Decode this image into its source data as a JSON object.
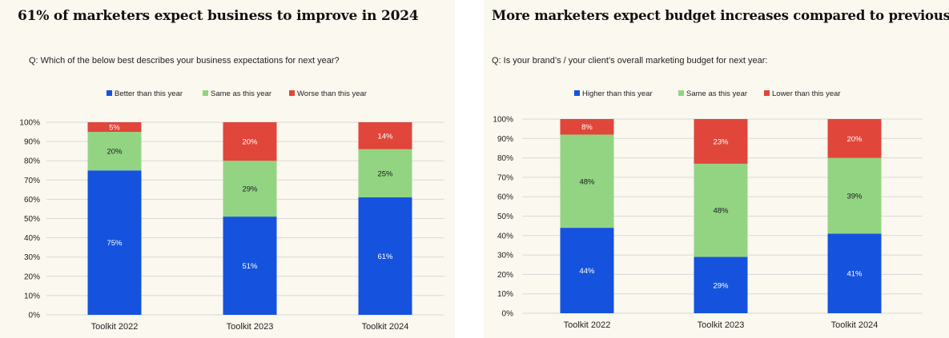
{
  "panels": [
    {
      "title": "61% of marketers expect business to improve in 2024",
      "question": "Q: Which of the below best describes your business expectations for next year?"
    },
    {
      "title": "More marketers expect budget increases compared to previous year",
      "question": "Q: Is your brand’s / your client’s overall marketing budget for next year:"
    }
  ],
  "chart_data": [
    {
      "type": "bar",
      "stacked": true,
      "categories": [
        "Toolkit 2022",
        "Toolkit 2023",
        "Toolkit 2024"
      ],
      "series": [
        {
          "name": "Better than this year",
          "values": [
            75,
            51,
            61
          ],
          "labels": [
            "75%",
            "51%",
            "61%"
          ],
          "color": "#1553de"
        },
        {
          "name": "Same as this year",
          "values": [
            20,
            29,
            25
          ],
          "labels": [
            "20%",
            "29%",
            "25%"
          ],
          "color": "#93d483"
        },
        {
          "name": "Worse than this year",
          "values": [
            5,
            20,
            14
          ],
          "labels": [
            "5%",
            "20%",
            "14%"
          ],
          "color": "#e0463a"
        }
      ],
      "ylim": [
        0,
        100
      ],
      "yticks": [
        "0%",
        "10%",
        "20%",
        "30%",
        "40%",
        "50%",
        "60%",
        "70%",
        "80%",
        "90%",
        "100%"
      ],
      "grid": true,
      "legend": "top"
    },
    {
      "type": "bar",
      "stacked": true,
      "categories": [
        "Toolkit 2022",
        "Toolkit 2023",
        "Toolkit 2024"
      ],
      "series": [
        {
          "name": "Higher than this year",
          "values": [
            44,
            29,
            41
          ],
          "labels": [
            "44%",
            "29%",
            "41%"
          ],
          "color": "#1553de"
        },
        {
          "name": "Same as this year",
          "values": [
            48,
            48,
            39
          ],
          "labels": [
            "48%",
            "48%",
            "39%"
          ],
          "color": "#93d483"
        },
        {
          "name": "Lower than this year",
          "values": [
            8,
            23,
            20
          ],
          "labels": [
            "8%",
            "23%",
            "20%"
          ],
          "color": "#e0463a"
        }
      ],
      "ylim": [
        0,
        100
      ],
      "yticks": [
        "0%",
        "10%",
        "20%",
        "30%",
        "40%",
        "50%",
        "60%",
        "70%",
        "80%",
        "90%",
        "100%"
      ],
      "grid": true,
      "legend": "top"
    }
  ]
}
